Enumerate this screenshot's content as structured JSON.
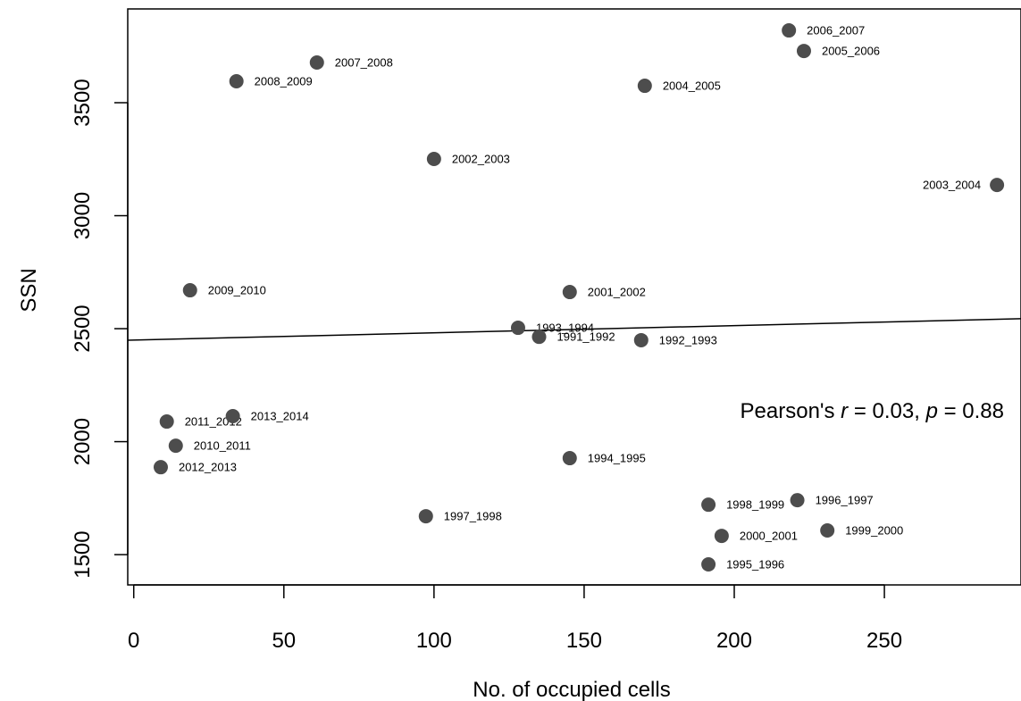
{
  "chart_data": {
    "type": "scatter",
    "x_label": "No. of occupied cells",
    "y_label": "SSN",
    "xlim": [
      -2,
      295.5
    ],
    "ylim": [
      1366,
      3915
    ],
    "xticks": [
      0,
      50,
      100,
      150,
      200,
      250
    ],
    "yticks": [
      1500,
      2000,
      2500,
      3000,
      3500
    ],
    "color": "#4d4d4d",
    "labels": [
      "2006_2007",
      "2005_2006",
      "2007_2008",
      "2008_2009",
      "2004_2005",
      "2002_2003",
      "2003_2004",
      "2009_2010",
      "2001_2002",
      "1993_1994",
      "1991_1992",
      "1992_1993",
      "2011_2012",
      "2013_2014",
      "2010_2011",
      "2012_2013",
      "1994_1995",
      "1997_1998",
      "1998_1999",
      "1996_1997",
      "2000_2001",
      "1999_2000",
      "1995_1996"
    ],
    "x": [
      218.2,
      223.2,
      61,
      34.2,
      170.2,
      100,
      287.5,
      18.75,
      145.2,
      128,
      135,
      169,
      11,
      33,
      14,
      9,
      145.2,
      97.3,
      191.4,
      221,
      195.8,
      231,
      191.4
    ],
    "y": [
      3820,
      3729,
      3678,
      3595,
      3575,
      3251,
      3136,
      2670,
      2662,
      2504,
      2464,
      2449,
      2089,
      2113,
      1982,
      1887,
      1927,
      1670,
      1721,
      1741,
      1583,
      1607,
      1457
    ],
    "trend_line": {
      "x": [
        -2,
        295.5
      ],
      "y": [
        2449,
        2544
      ]
    },
    "annotation": [
      "Pearson's ",
      "r",
      " = 0.03, ",
      "p",
      " = 0.88"
    ]
  }
}
